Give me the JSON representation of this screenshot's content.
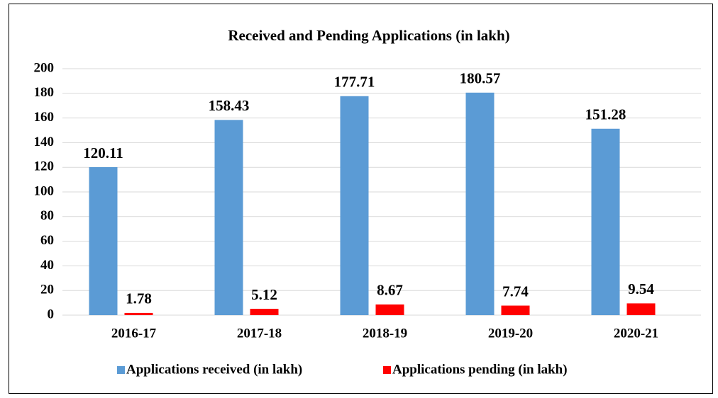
{
  "chart_data": {
    "type": "bar",
    "title": "Received and Pending Applications (in lakh)",
    "categories": [
      "2016-17",
      "2017-18",
      "2018-19",
      "2019-20",
      "2020-21"
    ],
    "series": [
      {
        "name": "Applications received (in lakh)",
        "color": "#5b9bd5",
        "values": [
          120.11,
          158.43,
          177.71,
          180.57,
          151.28
        ]
      },
      {
        "name": "Applications pending (in lakh)",
        "color": "#ff0000",
        "values": [
          1.78,
          5.12,
          8.67,
          7.74,
          9.54
        ]
      }
    ],
    "ylim": [
      0,
      200
    ],
    "yticks": [
      0,
      20,
      40,
      60,
      80,
      100,
      120,
      140,
      160,
      180,
      200
    ],
    "grid": true,
    "legend": "bottom"
  }
}
